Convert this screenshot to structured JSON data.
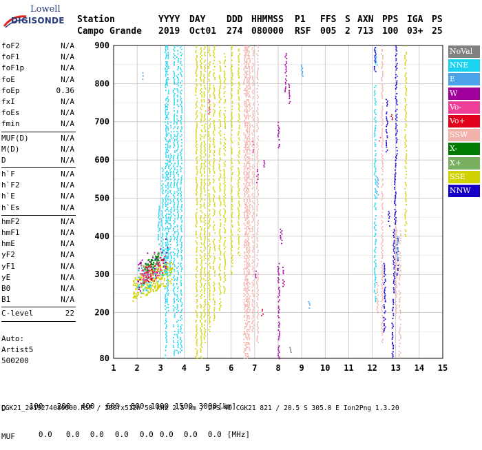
{
  "logo": {
    "line1": "Lowell",
    "line2": "DIGISONDE"
  },
  "header": {
    "labels": [
      "Station",
      "YYYY",
      "DAY",
      "DDD",
      "HHMMSS",
      "P1",
      "FFS",
      "S",
      "AXN",
      "PPS",
      "IGA",
      "PS"
    ],
    "values": [
      "Campo Grande",
      "2019",
      "Oct01",
      "274",
      "080000",
      "RSF",
      "005",
      "2",
      "713",
      "100",
      "03+",
      "25"
    ]
  },
  "parameters": {
    "group1": [
      {
        "name": "foF2",
        "value": "N/A"
      },
      {
        "name": "foF1",
        "value": "N/A"
      },
      {
        "name": "foF1p",
        "value": "N/A"
      },
      {
        "name": "foE",
        "value": "N/A"
      },
      {
        "name": "foEp",
        "value": "0.36"
      },
      {
        "name": "fxI",
        "value": "N/A"
      },
      {
        "name": "foEs",
        "value": "N/A"
      },
      {
        "name": "fmin",
        "value": "N/A"
      }
    ],
    "group2": [
      {
        "name": "MUF(D)",
        "value": "N/A"
      },
      {
        "name": "M(D)",
        "value": "N/A"
      },
      {
        "name": "D",
        "value": "N/A"
      }
    ],
    "group3": [
      {
        "name": "h`F",
        "value": "N/A"
      },
      {
        "name": "h`F2",
        "value": "N/A"
      },
      {
        "name": "h`E",
        "value": "N/A"
      },
      {
        "name": "h`Es",
        "value": "N/A"
      }
    ],
    "group4": [
      {
        "name": "hmF2",
        "value": "N/A"
      },
      {
        "name": "hmF1",
        "value": "N/A"
      },
      {
        "name": "hmE",
        "value": "N/A"
      },
      {
        "name": "yF2",
        "value": "N/A"
      },
      {
        "name": "yF1",
        "value": "N/A"
      },
      {
        "name": "yE",
        "value": "N/A"
      },
      {
        "name": "B0",
        "value": "N/A"
      },
      {
        "name": "B1",
        "value": "N/A"
      }
    ],
    "group5": [
      {
        "name": "C-level",
        "value": "22"
      }
    ]
  },
  "autoscale": {
    "line1": "Auto:",
    "line2": "Artist5",
    "line3": "500200"
  },
  "legend": [
    {
      "label": "NoVal",
      "color": "#808080"
    },
    {
      "label": "NNE",
      "color": "#19d3f0"
    },
    {
      "label": "E",
      "color": "#4aa3e8"
    },
    {
      "label": "W",
      "color": "#a0009c"
    },
    {
      "label": "Vo-",
      "color": "#ee3f96"
    },
    {
      "label": "Vo+",
      "color": "#e0001c"
    },
    {
      "label": "SSW",
      "color": "#f2b2ac"
    },
    {
      "label": "X-",
      "color": "#007a00"
    },
    {
      "label": "X+",
      "color": "#78b060"
    },
    {
      "label": "SSE",
      "color": "#d2d200"
    },
    {
      "label": "NNW",
      "color": "#1600c8"
    }
  ],
  "bottom": {
    "d_label": "D",
    "d_values": [
      "100",
      "200",
      "400",
      "600",
      "800",
      "1000",
      "1500",
      "3000",
      "[km]"
    ],
    "muf_label": "MUF",
    "muf_values": [
      "0.0",
      "0.0",
      "0.0",
      "0.0",
      "0.0",
      "0.0",
      "0.0",
      "0.0",
      "[MHz]"
    ]
  },
  "footer": "CGK21_2019274080000.RSF / 280fx512h 50 kHz 2.5 km / DPS-4D CGK21 821 / 20.5 S 305.0 E Ion2Png 1.3.20",
  "chart_data": {
    "type": "scatter",
    "title": "",
    "xlabel": "",
    "ylabel": "",
    "xlim": [
      1,
      15
    ],
    "ylim": [
      80,
      900
    ],
    "x_ticks": [
      1,
      2,
      3,
      4,
      5,
      6,
      7,
      8,
      9,
      10,
      11,
      12,
      13,
      14,
      15
    ],
    "y_ticks": [
      80,
      200,
      300,
      400,
      500,
      600,
      700,
      800,
      900
    ],
    "grid": true,
    "legend_position": "right",
    "traces": [
      {
        "series": "NNE",
        "segments": [
          {
            "x": 3.05,
            "h": [
              350,
              580
            ]
          },
          {
            "x": 3.2,
            "h": [
              80,
              900
            ]
          },
          {
            "x": 3.28,
            "h": [
              200,
              900
            ]
          },
          {
            "x": 3.4,
            "h": [
              300,
              700
            ]
          },
          {
            "x": 3.55,
            "h": [
              80,
              900
            ]
          },
          {
            "x": 3.7,
            "h": [
              90,
              900
            ]
          },
          {
            "x": 3.85,
            "h": [
              90,
              900
            ]
          },
          {
            "x": 2.9,
            "h": [
              380,
              480
            ]
          },
          {
            "x": 12.1,
            "h": [
              230,
              800
            ]
          },
          {
            "x": 12.15,
            "h": [
              850,
              900
            ]
          }
        ]
      },
      {
        "series": "SSE",
        "segments": [
          {
            "x": 4.5,
            "h": [
              80,
              900
            ]
          },
          {
            "x": 4.7,
            "h": [
              80,
              900
            ]
          },
          {
            "x": 4.85,
            "h": [
              120,
              900
            ]
          },
          {
            "x": 5.05,
            "h": [
              150,
              900
            ]
          },
          {
            "x": 5.25,
            "h": [
              180,
              900
            ]
          },
          {
            "x": 5.5,
            "h": [
              200,
              860
            ]
          },
          {
            "x": 5.7,
            "h": [
              250,
              880
            ]
          },
          {
            "x": 6.0,
            "h": [
              300,
              900
            ]
          },
          {
            "x": 6.3,
            "h": [
              350,
              900
            ]
          },
          {
            "x": 13.4,
            "h": [
              400,
              900
            ]
          }
        ]
      },
      {
        "series": "SSW",
        "segments": [
          {
            "x": 6.55,
            "h": [
              80,
              900
            ]
          },
          {
            "x": 6.62,
            "h": [
              80,
              900
            ]
          },
          {
            "x": 6.68,
            "h": [
              80,
              900
            ]
          },
          {
            "x": 6.75,
            "h": [
              100,
              900
            ]
          },
          {
            "x": 6.9,
            "h": [
              150,
              900
            ]
          },
          {
            "x": 7.1,
            "h": [
              120,
              900
            ]
          },
          {
            "x": 12.2,
            "h": [
              200,
              280
            ]
          },
          {
            "x": 12.4,
            "h": [
              120,
              900
            ]
          },
          {
            "x": 13.0,
            "h": [
              200,
              450
            ]
          },
          {
            "x": 13.15,
            "h": [
              80,
              420
            ]
          }
        ]
      },
      {
        "series": "NNW",
        "segments": [
          {
            "x": 12.85,
            "h": [
              80,
              240
            ]
          },
          {
            "x": 12.9,
            "h": [
              250,
              420
            ]
          },
          {
            "x": 12.95,
            "h": [
              430,
              600
            ]
          },
          {
            "x": 13.0,
            "h": [
              600,
              900
            ]
          },
          {
            "x": 13.05,
            "h": [
              300,
              400
            ]
          },
          {
            "x": 12.7,
            "h": [
              420,
              470
            ]
          },
          {
            "x": 12.5,
            "h": [
              150,
              330
            ]
          },
          {
            "x": 12.6,
            "h": [
              620,
              760
            ]
          },
          {
            "x": 12.1,
            "h": [
              830,
              900
            ]
          }
        ]
      },
      {
        "series": "W",
        "segments": [
          {
            "x": 7.1,
            "h": [
              540,
              580
            ]
          },
          {
            "x": 7.0,
            "h": [
              290,
              310
            ]
          },
          {
            "x": 8.0,
            "h": [
              80,
              330
            ]
          },
          {
            "x": 8.2,
            "h": [
              270,
              320
            ]
          },
          {
            "x": 8.3,
            "h": [
              780,
              880
            ]
          },
          {
            "x": 8.45,
            "h": [
              750,
              800
            ]
          },
          {
            "x": 8.0,
            "h": [
              630,
              700
            ]
          },
          {
            "x": 8.1,
            "h": [
              380,
              420
            ]
          },
          {
            "x": 7.4,
            "h": [
              580,
              600
            ]
          }
        ]
      },
      {
        "series": "Vo-",
        "segments": [
          {
            "x": 5.05,
            "h": [
              720,
              760
            ]
          },
          {
            "x": 6.9,
            "h": [
              620,
              650
            ]
          },
          {
            "x": 12.3,
            "h": [
              650,
              660
            ]
          }
        ]
      },
      {
        "series": "Vo+",
        "segments": [
          {
            "x": 7.3,
            "h": [
              190,
              210
            ]
          },
          {
            "x": 12.8,
            "h": [
              700,
              720
            ]
          }
        ]
      },
      {
        "series": "E",
        "segments": [
          {
            "x": 12.2,
            "h": [
              500,
              560
            ]
          },
          {
            "x": 13.05,
            "h": [
              340,
              400
            ]
          },
          {
            "x": 9.3,
            "h": [
              210,
              230
            ]
          },
          {
            "x": 9.0,
            "h": [
              820,
              850
            ]
          },
          {
            "x": 2.2,
            "h": [
              810,
              830
            ]
          }
        ]
      },
      {
        "series": "NoVal",
        "segments": [
          {
            "x": 8.5,
            "h": [
              95,
              110
            ]
          }
        ]
      }
    ],
    "clusters": [
      {
        "series": "SSE",
        "x": [
          1.8,
          3.5
        ],
        "h": [
          230,
          340
        ]
      },
      {
        "series": "NNE",
        "x": [
          2.0,
          3.3
        ],
        "h": [
          240,
          380
        ]
      },
      {
        "series": "W",
        "x": [
          2.0,
          3.3
        ],
        "h": [
          250,
          410
        ]
      },
      {
        "series": "X+",
        "x": [
          2.1,
          3.1
        ],
        "h": [
          260,
          380
        ]
      },
      {
        "series": "X-",
        "x": [
          2.3,
          2.9
        ],
        "h": [
          300,
          360
        ]
      },
      {
        "series": "Vo+",
        "x": [
          2.2,
          3.2
        ],
        "h": [
          260,
          360
        ]
      },
      {
        "series": "Vo-",
        "x": [
          2.1,
          3.0
        ],
        "h": [
          270,
          340
        ]
      }
    ]
  }
}
